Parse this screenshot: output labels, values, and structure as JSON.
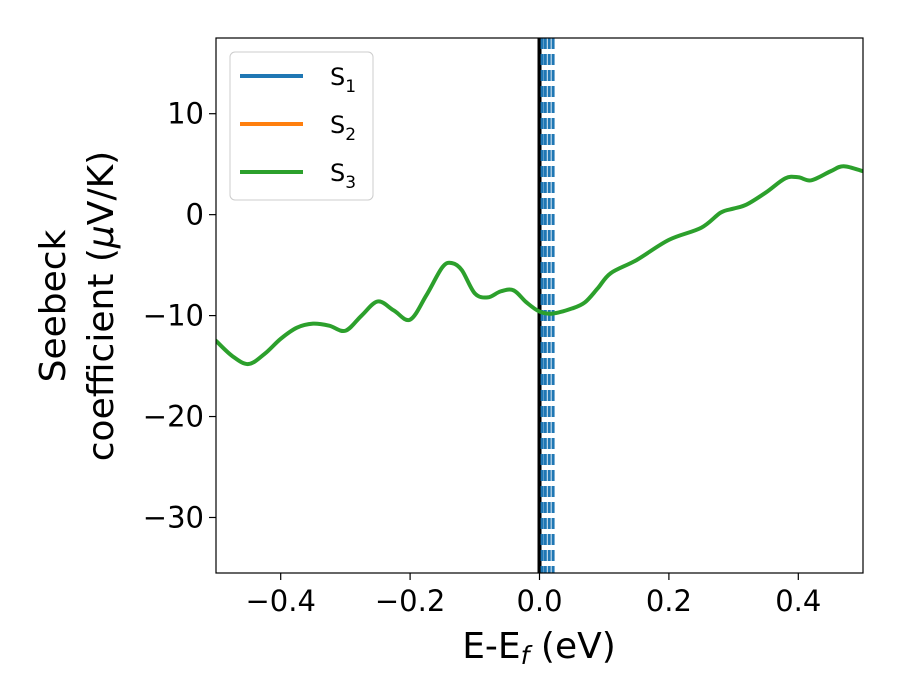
{
  "chart_data": {
    "type": "line",
    "xlabel": {
      "main": "E-E",
      "sub": "f",
      "tail": " (eV)"
    },
    "ylabel": {
      "line1": "Seebeck",
      "line2_pre": "coefficient  (",
      "line2_mu": "μ",
      "line2_post": "V/K)"
    },
    "xlim": [
      -0.5,
      0.5
    ],
    "ylim": [
      -35.5,
      17.5
    ],
    "xticks": [
      -0.4,
      -0.2,
      0.0,
      0.2,
      0.4
    ],
    "xtick_labels": [
      "−0.4",
      "−0.2",
      "0.0",
      "0.2",
      "0.4"
    ],
    "yticks": [
      10,
      0,
      -10,
      -20,
      -30
    ],
    "ytick_labels": [
      "10",
      "0",
      "−10",
      "−20",
      "−30"
    ],
    "grid": false,
    "legend_placement": "top-left",
    "series": [
      {
        "name": {
          "base": "S",
          "sub": "1"
        },
        "color": "#1f77b4"
      },
      {
        "name": {
          "base": "S",
          "sub": "2"
        },
        "color": "#ff7f0e"
      },
      {
        "name": {
          "base": "S",
          "sub": "3"
        },
        "color": "#2ca02c",
        "x": [
          -0.5,
          -0.475,
          -0.45,
          -0.425,
          -0.4,
          -0.375,
          -0.35,
          -0.325,
          -0.3,
          -0.275,
          -0.25,
          -0.225,
          -0.2,
          -0.175,
          -0.15,
          -0.135,
          -0.12,
          -0.1,
          -0.08,
          -0.06,
          -0.04,
          -0.02,
          0.0,
          0.02,
          0.05,
          0.07,
          0.09,
          0.11,
          0.15,
          0.2,
          0.25,
          0.28,
          0.3,
          0.32,
          0.35,
          0.38,
          0.4,
          0.42,
          0.45,
          0.47,
          0.5
        ],
        "y": [
          -12.5,
          -14.0,
          -14.8,
          -13.8,
          -12.3,
          -11.2,
          -10.8,
          -11.0,
          -11.5,
          -10.0,
          -8.6,
          -9.5,
          -10.4,
          -8.0,
          -5.2,
          -4.8,
          -5.5,
          -7.8,
          -8.2,
          -7.6,
          -7.5,
          -8.7,
          -9.6,
          -9.8,
          -9.3,
          -8.7,
          -7.3,
          -5.8,
          -4.5,
          -2.5,
          -1.3,
          0.2,
          0.6,
          1.0,
          2.2,
          3.6,
          3.7,
          3.4,
          4.3,
          4.8,
          4.3
        ]
      }
    ],
    "vertical_lines": [
      {
        "x": 0.0,
        "style": "solid",
        "color": "#000000"
      },
      {
        "x": 0.004,
        "style": "dashed",
        "color": "#1f77b4"
      },
      {
        "x": 0.009,
        "style": "dashed",
        "color": "#1f77b4"
      },
      {
        "x": 0.015,
        "style": "dashed",
        "color": "#1f77b4"
      },
      {
        "x": 0.021,
        "style": "dashed",
        "color": "#1f77b4"
      }
    ]
  }
}
